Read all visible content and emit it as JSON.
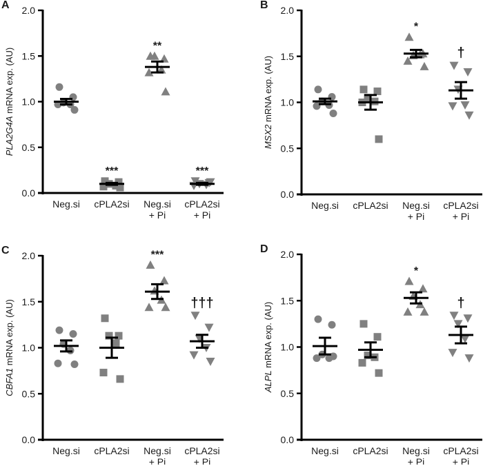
{
  "chart_data": [
    {
      "type": "scatter",
      "panel_label": "A",
      "ylabel_gene": "PLA2G4A",
      "ylabel_rest": " mRNA exp. (AU)",
      "ylim": [
        0,
        2.0
      ],
      "yticks": [
        "0.0",
        "0.5",
        "1.0",
        "1.5",
        "2.0"
      ],
      "categories": [
        [
          "Neg.si"
        ],
        [
          "cPLA2si"
        ],
        [
          "Neg.si",
          "+ Pi"
        ],
        [
          "cPLA2si",
          "+ Pi"
        ]
      ],
      "markers": [
        "circle",
        "square",
        "triangle-up",
        "triangle-down"
      ],
      "groups": [
        {
          "points": [
            1.16,
            1.05,
            0.99,
            0.97,
            0.97,
            0.91
          ],
          "mean": 1.0,
          "sem": 0.03,
          "annotation": ""
        },
        {
          "points": [
            0.13,
            0.12,
            0.1,
            0.08,
            0.07,
            0.06
          ],
          "mean": 0.1,
          "sem": 0.01,
          "annotation": "***"
        },
        {
          "points": [
            1.5,
            1.47,
            1.5,
            1.35,
            1.32,
            1.11
          ],
          "mean": 1.38,
          "sem": 0.06,
          "annotation": "**"
        },
        {
          "points": [
            0.13,
            0.11,
            0.1,
            0.09,
            0.08,
            0.12
          ],
          "mean": 0.1,
          "sem": 0.01,
          "annotation": "***"
        }
      ]
    },
    {
      "type": "scatter",
      "panel_label": "B",
      "ylabel_gene": "MSX2",
      "ylabel_rest": " mRNA exp. (AU)",
      "ylim": [
        0,
        2.0
      ],
      "yticks": [
        "0.0",
        "0.5",
        "1.0",
        "1.5",
        "2.0"
      ],
      "categories": [
        [
          "Neg.si"
        ],
        [
          "cPLA2si"
        ],
        [
          "Neg.si",
          "+ Pi"
        ],
        [
          "cPLA2si",
          "+ Pi"
        ]
      ],
      "markers": [
        "circle",
        "square",
        "triangle-up",
        "triangle-down"
      ],
      "groups": [
        {
          "points": [
            1.14,
            1.06,
            1.01,
            0.97,
            0.96,
            0.88
          ],
          "mean": 1.01,
          "sem": 0.03,
          "annotation": ""
        },
        {
          "points": [
            1.14,
            1.12,
            1.05,
            1.01,
            1.0,
            0.6
          ],
          "mean": 1.0,
          "sem": 0.08,
          "annotation": ""
        },
        {
          "points": [
            1.71,
            1.53,
            1.51,
            1.52,
            1.45,
            1.39
          ],
          "mean": 1.53,
          "sem": 0.04,
          "annotation": "*"
        },
        {
          "points": [
            1.4,
            1.33,
            1.14,
            0.97,
            0.96,
            0.86
          ],
          "mean": 1.13,
          "sem": 0.09,
          "annotation": "†"
        }
      ]
    },
    {
      "type": "scatter",
      "panel_label": "C",
      "ylabel_gene": "CBFA1",
      "ylabel_rest": " mRNA exp. (AU)",
      "ylim": [
        0,
        2.0
      ],
      "yticks": [
        "0.0",
        "0.5",
        "1.0",
        "1.5",
        "2.0"
      ],
      "categories": [
        [
          "Neg.si"
        ],
        [
          "cPLA2si"
        ],
        [
          "Neg.si",
          "+ Pi"
        ],
        [
          "cPLA2si",
          "+ Pi"
        ]
      ],
      "markers": [
        "circle",
        "square",
        "triangle-up",
        "triangle-down"
      ],
      "groups": [
        {
          "points": [
            1.19,
            1.15,
            1.04,
            0.97,
            0.83,
            0.82
          ],
          "mean": 1.02,
          "sem": 0.06,
          "annotation": ""
        },
        {
          "points": [
            1.32,
            1.13,
            1.13,
            1.05,
            0.73,
            0.66
          ],
          "mean": 1.0,
          "sem": 0.11,
          "annotation": ""
        },
        {
          "points": [
            1.9,
            1.73,
            1.62,
            1.52,
            1.44,
            1.44
          ],
          "mean": 1.61,
          "sem": 0.08,
          "annotation": "***"
        },
        {
          "points": [
            1.35,
            1.22,
            1.1,
            1.0,
            0.92,
            0.85
          ],
          "mean": 1.07,
          "sem": 0.07,
          "annotation": "†††"
        }
      ]
    },
    {
      "type": "scatter",
      "panel_label": "D",
      "ylabel_gene": "ALPL",
      "ylabel_rest": " mRNA exp. (AU)",
      "ylim": [
        0,
        2.0
      ],
      "yticks": [
        "0.0",
        "0.5",
        "1.0",
        "1.5",
        "2.0"
      ],
      "categories": [
        [
          "Neg.si"
        ],
        [
          "cPLA2si"
        ],
        [
          "Neg.si",
          "+ Pi"
        ],
        [
          "cPLA2si",
          "+ Pi"
        ]
      ],
      "markers": [
        "circle",
        "square",
        "triangle-up",
        "triangle-down"
      ],
      "groups": [
        {
          "points": [
            1.3,
            1.24,
            0.92,
            0.88,
            0.88,
            0.9
          ],
          "mean": 1.01,
          "sem": 0.09,
          "annotation": ""
        },
        {
          "points": [
            1.25,
            1.11,
            0.91,
            0.89,
            0.83,
            0.72
          ],
          "mean": 0.97,
          "sem": 0.08,
          "annotation": ""
        },
        {
          "points": [
            1.71,
            1.63,
            1.55,
            1.46,
            1.38,
            1.38
          ],
          "mean": 1.53,
          "sem": 0.06,
          "annotation": "*"
        },
        {
          "points": [
            1.34,
            1.31,
            1.25,
            1.09,
            0.94,
            0.88
          ],
          "mean": 1.13,
          "sem": 0.09,
          "annotation": "†"
        }
      ]
    }
  ],
  "colors": {
    "marker": "#808080",
    "axis": "#000000"
  }
}
